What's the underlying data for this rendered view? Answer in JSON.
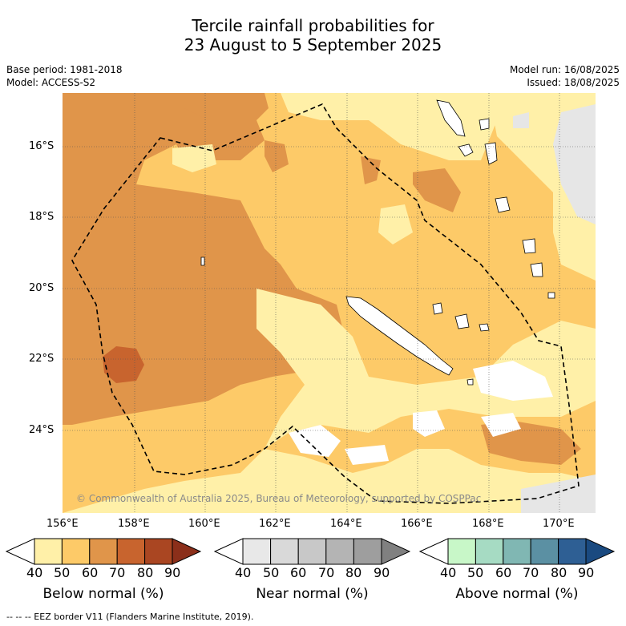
{
  "title_line1": "Tercile rainfall probabilities for",
  "title_line2": "23 August to 5 September 2025",
  "base_period": "Base period: 1981-2018",
  "model": "Model: ACCESS-S2",
  "model_run": "Model run: 16/08/2025",
  "issued": "Issued: 18/08/2025",
  "copyright": "© Commonwealth of Australia 2025, Bureau of Meteorology, supported by COSPPac",
  "lat_labels": [
    "16°S",
    "18°S",
    "20°S",
    "22°S",
    "24°S"
  ],
  "lon_labels": [
    "156°E",
    "158°E",
    "160°E",
    "162°E",
    "164°E",
    "166°E",
    "168°E",
    "170°E"
  ],
  "colorbars": [
    {
      "title": "Below normal (%)",
      "ticks": [
        "40",
        "50",
        "60",
        "70",
        "80",
        "90"
      ],
      "colors": [
        "#ffffff",
        "#fff0a8",
        "#fdca68",
        "#e0954a",
        "#c8642e",
        "#aa4622",
        "#8b2f1a"
      ]
    },
    {
      "title": "Near normal (%)",
      "ticks": [
        "40",
        "50",
        "60",
        "70",
        "80",
        "90"
      ],
      "colors": [
        "#ffffff",
        "#e8e8e8",
        "#d9d9d9",
        "#c8c8c8",
        "#b4b4b4",
        "#9e9e9e",
        "#808080"
      ]
    },
    {
      "title": "Above normal (%)",
      "ticks": [
        "40",
        "50",
        "60",
        "70",
        "80",
        "90"
      ],
      "colors": [
        "#ffffff",
        "#c8f7c8",
        "#a6dbc3",
        "#80b7b3",
        "#5b90a3",
        "#2e5f94",
        "#1a4a80"
      ]
    }
  ],
  "legend_note": "--  --  -- EEZ border V11 (Flanders Marine Institute, 2019)."
}
